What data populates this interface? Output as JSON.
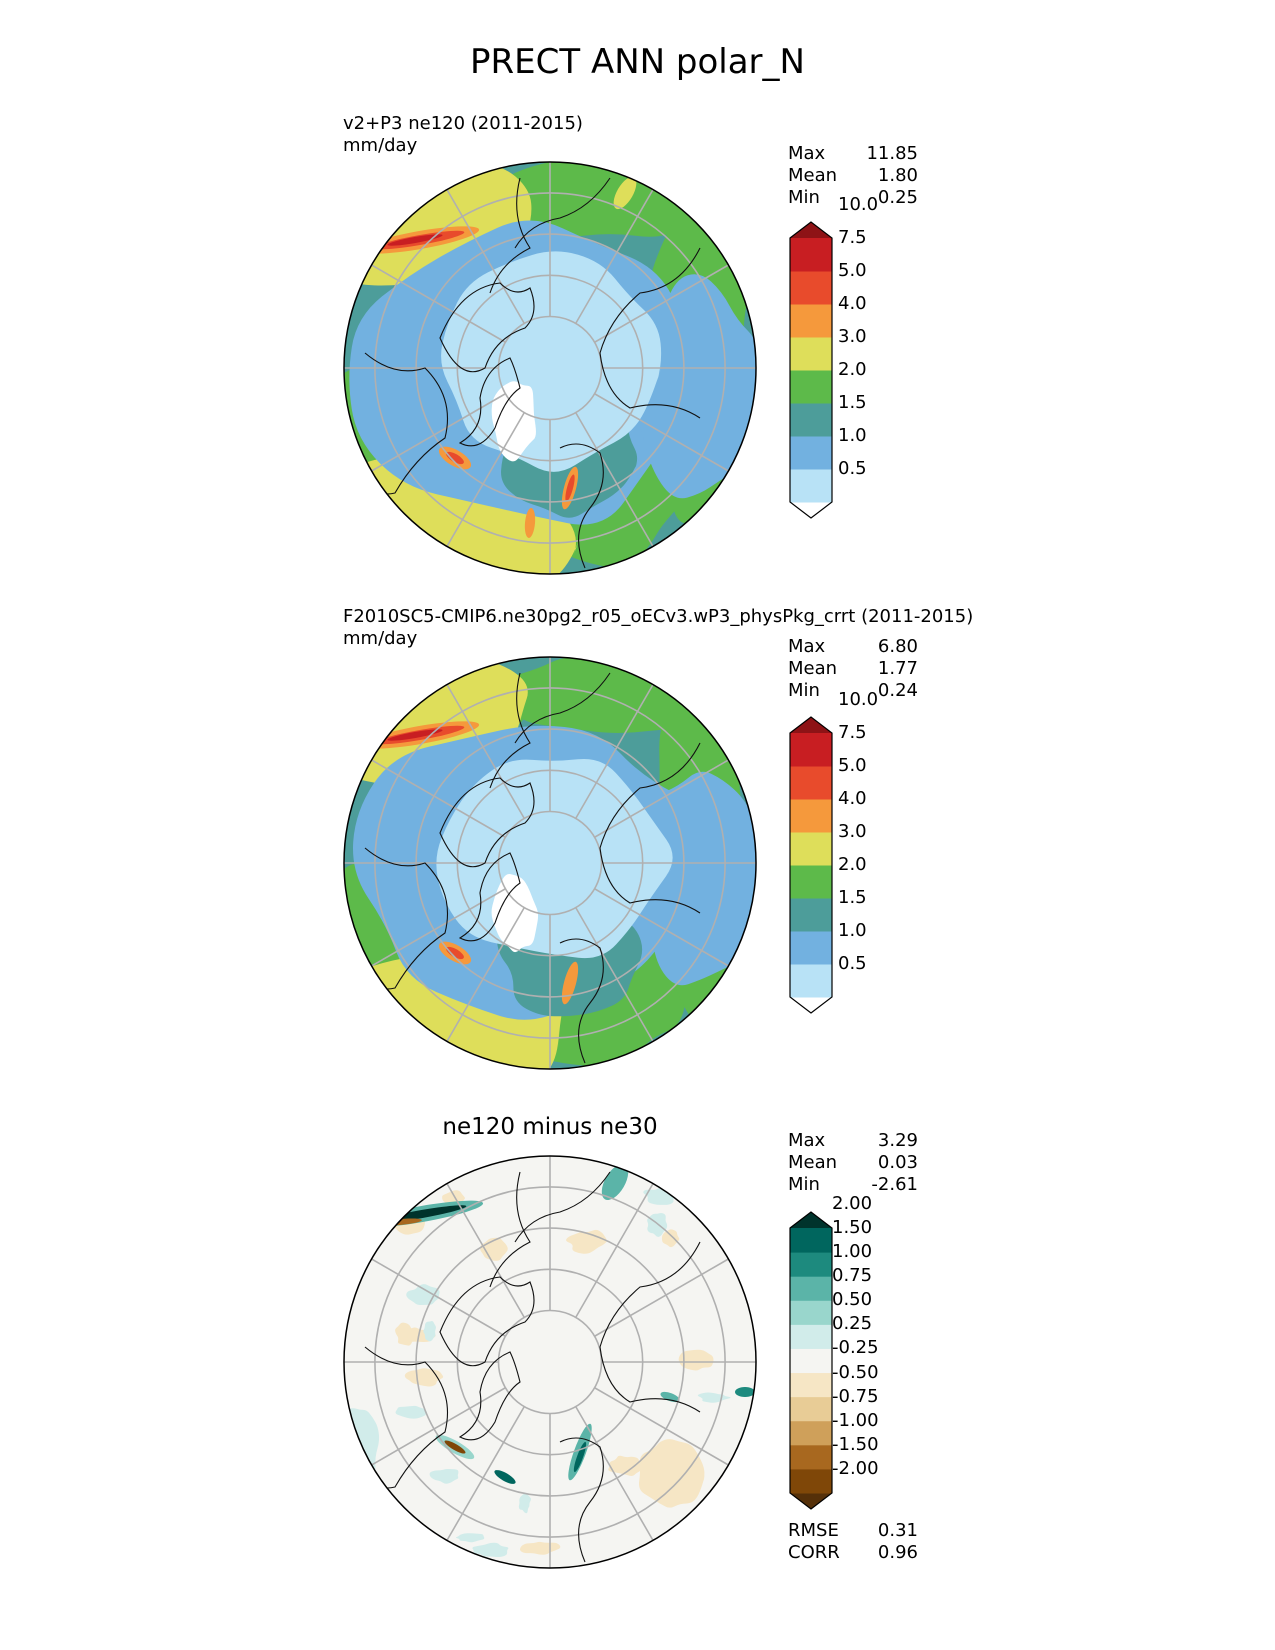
{
  "figure": {
    "title": "PRECT ANN polar_N"
  },
  "panels": [
    {
      "title_line1": "v2+P3 ne120 (2011-2015)",
      "units": "mm/day",
      "stats": {
        "max_label": "Max",
        "max": "11.85",
        "mean_label": "Mean",
        "mean": "1.80",
        "min_label": "Min",
        "min": "0.25"
      }
    },
    {
      "title_line1": "F2010SC5-CMIP6.ne30pg2_r05_oECv3.wP3_physPkg_crrt (2011-2015)",
      "units": "mm/day",
      "stats": {
        "max_label": "Max",
        "max": "6.80",
        "mean_label": "Mean",
        "mean": "1.77",
        "min_label": "Min",
        "min": "0.24"
      }
    },
    {
      "title": "ne120 minus ne30",
      "stats": {
        "max_label": "Max",
        "max": "3.29",
        "mean_label": "Mean",
        "mean": "0.03",
        "min_label": "Min",
        "min": "-2.61"
      },
      "metrics": {
        "rmse_label": "RMSE",
        "rmse": "0.31",
        "corr_label": "CORR",
        "corr": "0.96"
      }
    }
  ],
  "chart_data": [
    {
      "type": "heatmap",
      "projection": "north-polar-stereographic",
      "title": "v2+P3 ne120 (2011-2015)",
      "units": "mm/day",
      "colorbar": {
        "levels": [
          "0.5",
          "1.0",
          "1.5",
          "2.0",
          "3.0",
          "4.0",
          "5.0",
          "7.5",
          "10.0"
        ],
        "colors": [
          "#ffffff",
          "#b8e2f6",
          "#72b1e0",
          "#4d9d9a",
          "#5dba4a",
          "#dede5a",
          "#f5993c",
          "#e84b2c",
          "#c81e22",
          "#8e1316"
        ],
        "extend": "both"
      },
      "summary": {
        "max": 11.85,
        "mean": 1.8,
        "min": 0.25
      }
    },
    {
      "type": "heatmap",
      "projection": "north-polar-stereographic",
      "title": "F2010SC5-CMIP6.ne30pg2_r05_oECv3.wP3_physPkg_crrt (2011-2015)",
      "units": "mm/day",
      "colorbar": {
        "levels": [
          "0.5",
          "1.0",
          "1.5",
          "2.0",
          "3.0",
          "4.0",
          "5.0",
          "7.5",
          "10.0"
        ],
        "colors": [
          "#ffffff",
          "#b8e2f6",
          "#72b1e0",
          "#4d9d9a",
          "#5dba4a",
          "#dede5a",
          "#f5993c",
          "#e84b2c",
          "#c81e22",
          "#8e1316"
        ],
        "extend": "both"
      },
      "summary": {
        "max": 6.8,
        "mean": 1.77,
        "min": 0.24
      }
    },
    {
      "type": "heatmap",
      "projection": "north-polar-stereographic",
      "title": "ne120 minus ne30",
      "colorbar": {
        "levels": [
          "2.00",
          "1.50",
          "1.00",
          "0.75",
          "0.50",
          "0.25",
          "-0.25",
          "-0.50",
          "-0.75",
          "-1.00",
          "-1.50",
          "-2.00"
        ],
        "colors": [
          "#00332c",
          "#00665e",
          "#1d8a7e",
          "#5bb4a8",
          "#99d6cc",
          "#d1ecea",
          "#f5f5f2",
          "#f6e6c5",
          "#e8cc96",
          "#cfa05a",
          "#a8681f",
          "#7f4708",
          "#553009"
        ],
        "extend": "both"
      },
      "summary": {
        "max": 3.29,
        "mean": 0.03,
        "min": -2.61,
        "rmse": 0.31,
        "corr": 0.96
      }
    }
  ]
}
